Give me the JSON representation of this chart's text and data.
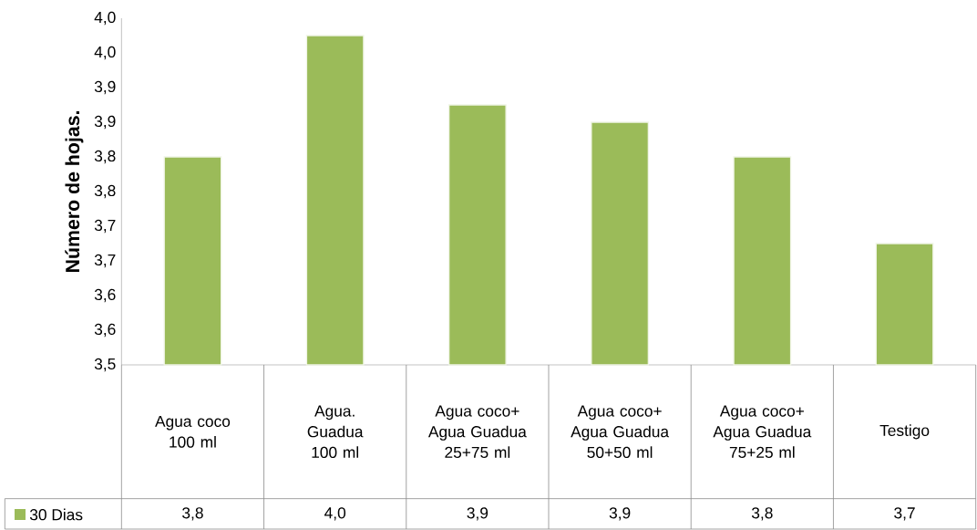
{
  "chart_data": {
    "type": "bar",
    "ylabel": "Número de hojas.",
    "categories": [
      "Agua coco 100 ml",
      "Agua. Guadua 100 ml",
      "Agua coco+ Agua Guadua 25+75 ml",
      "Agua coco+ Agua Guadua 50+50 ml",
      "Agua coco+ Agua Guadua 75+25 ml",
      "Testigo"
    ],
    "series": [
      {
        "name": "30 Dias",
        "color": "#9bbb59",
        "values": [
          3.8,
          3.975,
          3.875,
          3.85,
          3.8,
          3.675
        ],
        "value_labels": [
          "3,8",
          "4,0",
          "3,9",
          "3,9",
          "3,8",
          "3,7"
        ]
      }
    ],
    "ylim": [
      3.5,
      4.0
    ],
    "yticks": [
      {
        "value": 3.5,
        "label": "3,5"
      },
      {
        "value": 3.55,
        "label": "3,6"
      },
      {
        "value": 3.6,
        "label": "3,6"
      },
      {
        "value": 3.65,
        "label": "3,7"
      },
      {
        "value": 3.7,
        "label": "3,7"
      },
      {
        "value": 3.75,
        "label": "3,8"
      },
      {
        "value": 3.8,
        "label": "3,8"
      },
      {
        "value": 3.85,
        "label": "3,9"
      },
      {
        "value": 3.9,
        "label": "3,9"
      },
      {
        "value": 3.95,
        "label": "4,0"
      },
      {
        "value": 4.0,
        "label": "4,0"
      }
    ],
    "legend": "bottom left"
  }
}
